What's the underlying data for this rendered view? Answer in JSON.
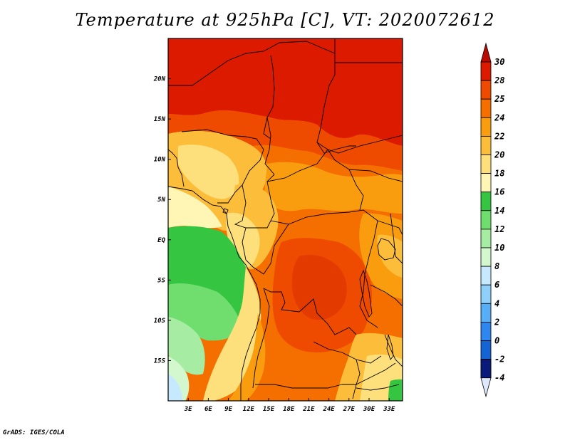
{
  "title": "Temperature at 925hPa [C], VT: 2020072612",
  "credit": "GrADS: IGES/COLA",
  "chart_data": {
    "type": "heatmap",
    "title": "Temperature at 925hPa [C], VT: 2020072612",
    "variable": "Temperature at 925hPa",
    "units": "C",
    "valid_time": "2020072612",
    "x_axis": {
      "ticks": [
        "3E",
        "6E",
        "9E",
        "12E",
        "15E",
        "18E",
        "21E",
        "24E",
        "27E",
        "30E",
        "33E"
      ],
      "tick_values": [
        3,
        6,
        9,
        12,
        15,
        18,
        21,
        24,
        27,
        30,
        33
      ],
      "range": [
        0,
        35
      ]
    },
    "y_axis": {
      "ticks": [
        "20N",
        "15N",
        "10N",
        "5N",
        "EQ",
        "5S",
        "10S",
        "15S"
      ],
      "tick_values": [
        20,
        15,
        10,
        5,
        0,
        -5,
        -10,
        -15
      ],
      "range": [
        -20,
        25
      ]
    },
    "colorbar": {
      "labels": [
        "30",
        "28",
        "25",
        "24",
        "22",
        "20",
        "18",
        "16",
        "14",
        "12",
        "10",
        "8",
        "6",
        "4",
        "2",
        "0",
        "-2",
        "-4"
      ],
      "values": [
        30,
        28,
        25,
        24,
        22,
        20,
        18,
        16,
        14,
        12,
        10,
        8,
        6,
        4,
        2,
        0,
        -2,
        -4
      ],
      "colors": [
        "#dc1a00",
        "#ee4a00",
        "#f56e00",
        "#f99d0e",
        "#fbbd3a",
        "#fde07b",
        "#fff6b6",
        "#35c541",
        "#6fde6f",
        "#a7eca3",
        "#d3f8cd",
        "#c7e9fd",
        "#8fd0fb",
        "#57aef7",
        "#2e87ee",
        "#1464d4",
        "#0b3fb0",
        "#091a7a"
      ],
      "top_triangle_color": "#b80a00",
      "bottom_triangle_color": "#e0e8ff"
    }
  }
}
